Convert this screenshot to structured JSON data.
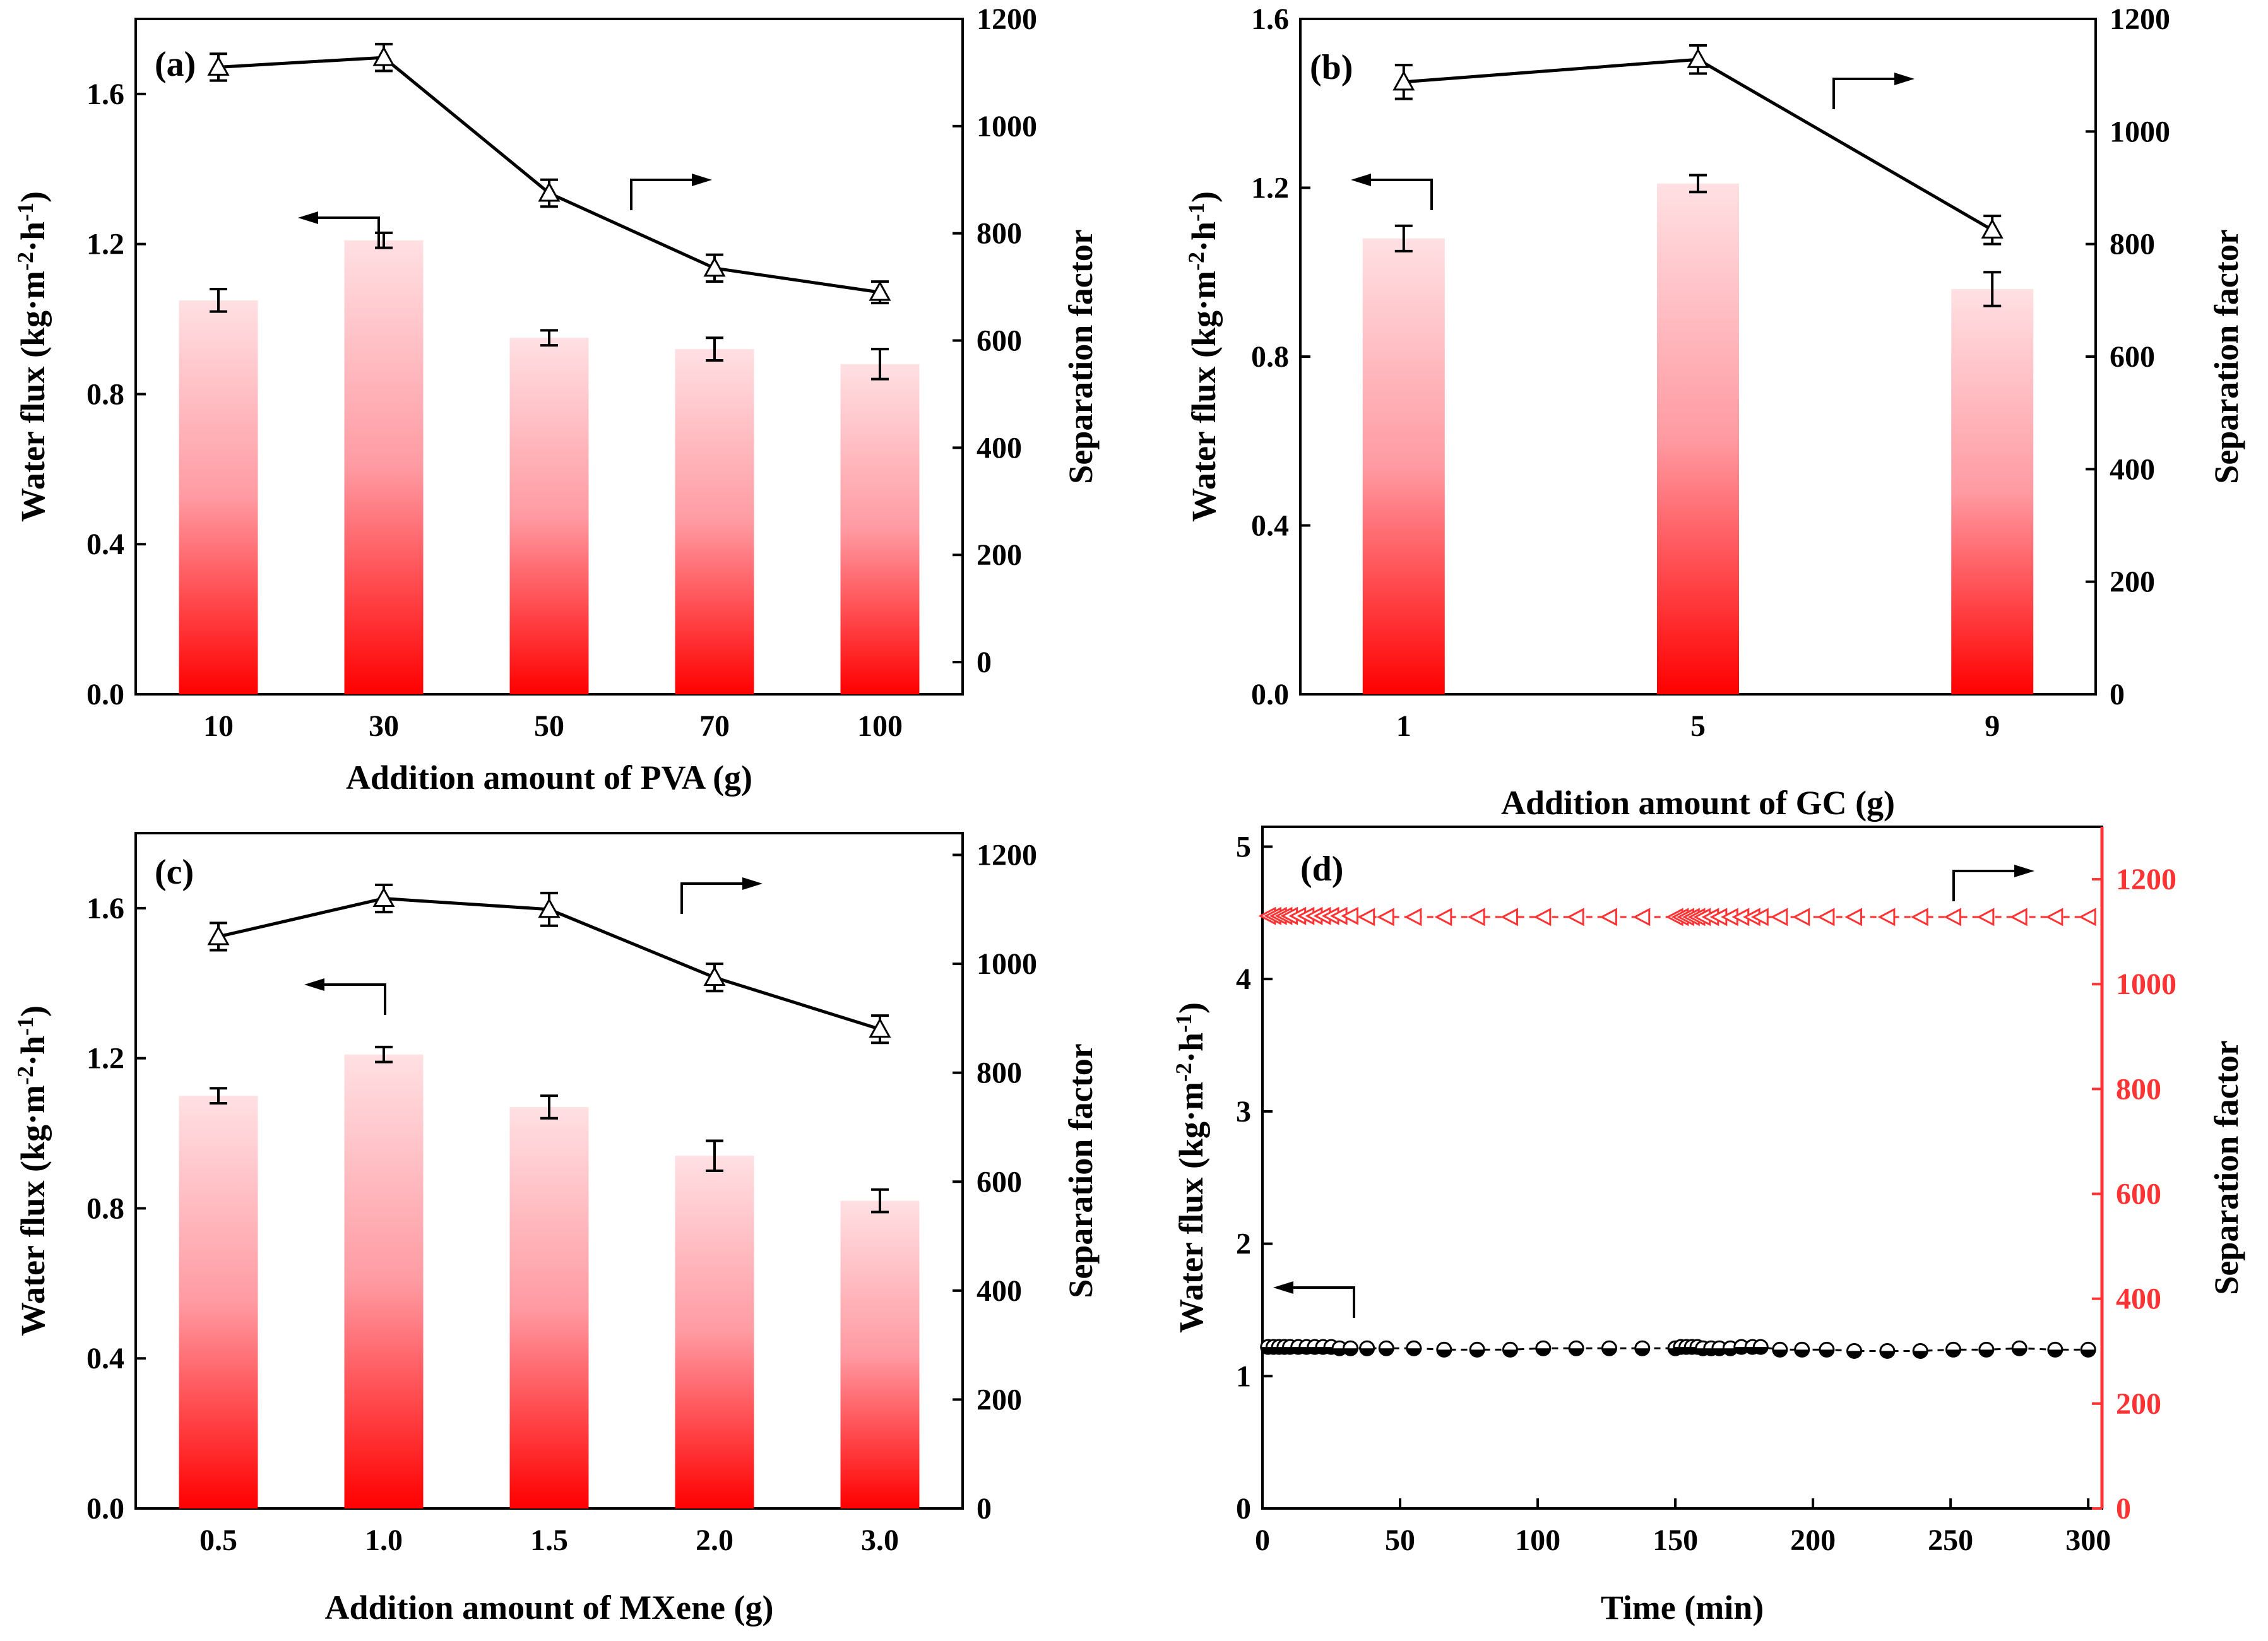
{
  "chart_data": [
    {
      "type": "bar+line",
      "panel_label": "(a)",
      "xlabel": "Addition amount of PVA (g)",
      "ylabel_left": "Water flux (kg·m⁻²·h⁻¹)",
      "ylabel_right": "Separation factor",
      "categories": [
        "10",
        "30",
        "50",
        "70",
        "100"
      ],
      "left_ylim": [
        0,
        1.8
      ],
      "left_ticks": [
        "0.0",
        "0.4",
        "0.8",
        "1.2",
        "1.6"
      ],
      "right_ylim": [
        -60,
        1200
      ],
      "right_ticks": [
        "0",
        "200",
        "400",
        "600",
        "800",
        "1000",
        "1200"
      ],
      "bars": {
        "name": "Water flux",
        "values": [
          1.05,
          1.21,
          0.95,
          0.92,
          0.88
        ],
        "errors": [
          0.03,
          0.02,
          0.02,
          0.03,
          0.04
        ]
      },
      "line": {
        "name": "Separation factor",
        "values": [
          1110,
          1128,
          875,
          735,
          690
        ],
        "errors": [
          25,
          25,
          25,
          25,
          20
        ]
      },
      "arrows": [
        "left",
        "right"
      ]
    },
    {
      "type": "bar+line",
      "panel_label": "(b)",
      "xlabel": "Addition amount of GC (g)",
      "ylabel_left": "Water flux (kg·m⁻²·h⁻¹)",
      "ylabel_right": "Separation factor",
      "categories": [
        "1",
        "5",
        "9"
      ],
      "left_ylim": [
        0,
        1.6
      ],
      "left_ticks": [
        "0.0",
        "0.4",
        "0.8",
        "1.2",
        "1.6"
      ],
      "right_ylim": [
        0,
        1200
      ],
      "right_ticks": [
        "0",
        "200",
        "400",
        "600",
        "800",
        "1000",
        "1200"
      ],
      "bars": {
        "name": "Water flux",
        "values": [
          1.08,
          1.21,
          0.96
        ],
        "errors": [
          0.03,
          0.02,
          0.04
        ]
      },
      "line": {
        "name": "Separation factor",
        "values": [
          1088,
          1128,
          825
        ],
        "errors": [
          30,
          25,
          25
        ]
      },
      "arrows": [
        "left",
        "right"
      ]
    },
    {
      "type": "bar+line",
      "panel_label": "(c)",
      "xlabel": "Addition amount of MXene (g)",
      "ylabel_left": "Water flux (kg·m⁻²·h⁻¹)",
      "ylabel_right": "Separation factor",
      "categories": [
        "0.5",
        "1.0",
        "1.5",
        "2.0",
        "3.0"
      ],
      "left_ylim": [
        0,
        1.8
      ],
      "left_ticks": [
        "0.0",
        "0.4",
        "0.8",
        "1.2",
        "1.6"
      ],
      "right_ylim": [
        0,
        1240
      ],
      "right_ticks": [
        "0",
        "200",
        "400",
        "600",
        "800",
        "1000",
        "1200"
      ],
      "bars": {
        "name": "Water flux",
        "values": [
          1.1,
          1.21,
          1.07,
          0.94,
          0.82
        ],
        "errors": [
          0.02,
          0.02,
          0.03,
          0.04,
          0.03
        ]
      },
      "line": {
        "name": "Separation factor",
        "values": [
          1050,
          1120,
          1100,
          975,
          880
        ],
        "errors": [
          25,
          25,
          30,
          25,
          25
        ]
      },
      "arrows": [
        "left",
        "right"
      ]
    },
    {
      "type": "scatter",
      "panel_label": "(d)",
      "xlabel": "Time (min)",
      "ylabel_left": "Water flux (kg·m⁻²·h⁻¹)",
      "ylabel_right": "Separation factor",
      "xlim": [
        0,
        305
      ],
      "x_ticks": [
        "0",
        "50",
        "100",
        "150",
        "200",
        "250",
        "300"
      ],
      "left_ylim": [
        0,
        5.15
      ],
      "left_ticks": [
        "0",
        "1",
        "2",
        "3",
        "4",
        "5"
      ],
      "right_ylim": [
        0,
        1300
      ],
      "right_ticks": [
        "0",
        "200",
        "400",
        "600",
        "800",
        "1000",
        "1200"
      ],
      "x": [
        2,
        4,
        6,
        8,
        10,
        13,
        16,
        19,
        22,
        25,
        28,
        32,
        38,
        45,
        55,
        66,
        78,
        90,
        102,
        114,
        126,
        138,
        150,
        152,
        154,
        156,
        158,
        160,
        163,
        166,
        170,
        174,
        178,
        181,
        188,
        196,
        205,
        215,
        227,
        239,
        251,
        263,
        275,
        288,
        300
      ],
      "series": [
        {
          "name": "Water flux",
          "axis": "left",
          "marker": "circle",
          "color": "#000000",
          "values": [
            1.22,
            1.22,
            1.22,
            1.22,
            1.22,
            1.22,
            1.22,
            1.22,
            1.22,
            1.22,
            1.21,
            1.21,
            1.21,
            1.21,
            1.21,
            1.2,
            1.2,
            1.2,
            1.21,
            1.21,
            1.21,
            1.21,
            1.21,
            1.22,
            1.22,
            1.22,
            1.22,
            1.21,
            1.21,
            1.21,
            1.21,
            1.22,
            1.22,
            1.22,
            1.2,
            1.2,
            1.2,
            1.19,
            1.19,
            1.19,
            1.2,
            1.2,
            1.21,
            1.2,
            1.2
          ]
        },
        {
          "name": "Separation factor",
          "axis": "right",
          "marker": "triangle-left",
          "color": "#ff3333",
          "values": [
            1130,
            1130,
            1130,
            1130,
            1130,
            1130,
            1130,
            1130,
            1130,
            1130,
            1130,
            1130,
            1128,
            1128,
            1128,
            1128,
            1128,
            1128,
            1128,
            1128,
            1128,
            1128,
            1128,
            1128,
            1128,
            1128,
            1128,
            1128,
            1128,
            1128,
            1128,
            1128,
            1128,
            1128,
            1128,
            1128,
            1128,
            1128,
            1128,
            1128,
            1128,
            1128,
            1128,
            1128,
            1128
          ]
        }
      ],
      "arrows": [
        "left",
        "right"
      ]
    }
  ],
  "colors": {
    "axis": "#000000",
    "bar_top": "#ffd9dc",
    "bar_bottom": "#ff0000",
    "right_axis_d": "#ff3333"
  }
}
